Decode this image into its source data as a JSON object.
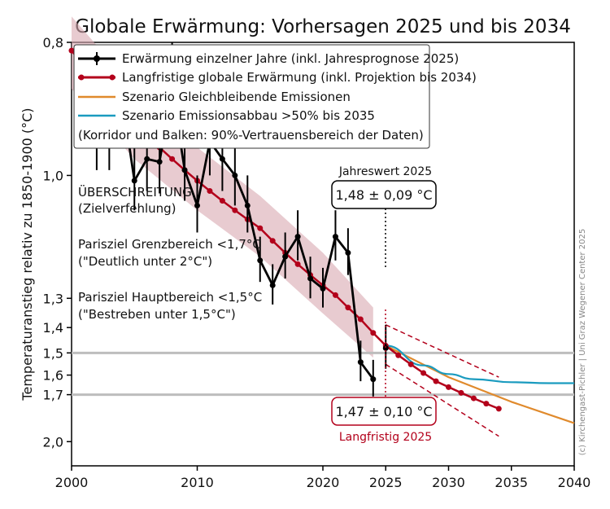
{
  "chart_data": {
    "type": "line",
    "title": "Globale Erwärmung: Vorhersagen 2025 und bis 2034",
    "ylabel": "Temperaturanstieg relativ zu 1850-1900 (°C)",
    "xlabel": "",
    "xlim": [
      2000,
      2040
    ],
    "ylim": [
      0.8,
      2.2
    ],
    "y_scale": "reciprocal",
    "x_ticks": [
      2000,
      2010,
      2020,
      2025,
      2030,
      2035,
      2040
    ],
    "y_ticks": [
      0.8,
      1.0,
      1.3,
      1.4,
      1.5,
      1.6,
      1.7,
      2.0
    ],
    "y_tick_labels": [
      "0,8",
      "1,0",
      "1,3",
      "1,4",
      "1,5",
      "1,6",
      "1,7",
      "2,0"
    ],
    "x_tick_labels": [
      "2000",
      "2010",
      "2020",
      "2025",
      "2030",
      "2035",
      "2040"
    ],
    "reference_lines": [
      1.5,
      1.7
    ],
    "legend": {
      "placement": "top",
      "entries": [
        "Erwärmung einzelner Jahre (inkl. Jahresprognose 2025)",
        "Langfristige globale Erwärmung (inkl. Projektion bis 2034)",
        "Szenario Gleichbleibende Emissionen",
        "Szenario Emissionsabbau >50% bis 2035"
      ],
      "note": "(Korridor und Balken: 90%-Vertrauensbereich der Daten)"
    },
    "annotations": {
      "ueber_title": "ÜBERSCHREITUNG",
      "ueber_sub": "(Zielverfehlung)",
      "grenz_title": "Parisziel Grenzbereich <1,7°C",
      "grenz_sub": "(\"Deutlich unter 2°C\")",
      "haupt_title": "Parisziel Hauptbereich <1,5°C",
      "haupt_sub": "(\"Bestreben unter 1,5°C\")",
      "annual_label": "Jahreswert 2025",
      "annual_value": "1,48 ± 0,09 °C",
      "long_value": "1,47 ± 0,10 °C",
      "long_label": "Langfristig 2025"
    },
    "credit": "(c) Kirchengast-Pichler | Uni Graz Wegener Center 2025",
    "series": [
      {
        "name": "Erwärmung einzelner Jahre (inkl. Jahresprognose 2025)",
        "color": "#000000",
        "x": [
          2001,
          2002,
          2003,
          2004,
          2005,
          2006,
          2007,
          2008,
          2009,
          2010,
          2011,
          2012,
          2013,
          2014,
          2015,
          2016,
          2017,
          2018,
          2019,
          2020,
          2021,
          2022,
          2023,
          2024,
          2025
        ],
        "y": [
          0.87,
          0.93,
          0.93,
          0.87,
          1.01,
          0.97,
          0.975,
          0.86,
          0.99,
          1.06,
          0.94,
          0.97,
          1.0,
          1.06,
          1.19,
          1.26,
          1.18,
          1.13,
          1.24,
          1.27,
          1.13,
          1.17,
          1.54,
          1.62,
          1.48
        ],
        "err": [
          0.06,
          0.06,
          0.06,
          0.06,
          0.06,
          0.06,
          0.06,
          0.06,
          0.06,
          0.06,
          0.06,
          0.06,
          0.06,
          0.06,
          0.06,
          0.06,
          0.06,
          0.06,
          0.06,
          0.06,
          0.06,
          0.06,
          0.09,
          0.09,
          0.09
        ]
      },
      {
        "name": "Langfristige globale Erwärmung (inkl. Projektion bis 2034)",
        "color": "#b3001b",
        "x": [
          2000,
          2001,
          2002,
          2003,
          2004,
          2005,
          2006,
          2007,
          2008,
          2009,
          2010,
          2011,
          2012,
          2013,
          2014,
          2015,
          2016,
          2017,
          2018,
          2019,
          2020,
          2021,
          2022,
          2023,
          2024,
          2025,
          2026,
          2027,
          2028,
          2029,
          2030,
          2031,
          2032,
          2033,
          2034
        ],
        "y": [
          0.81,
          0.83,
          0.85,
          0.87,
          0.89,
          0.91,
          0.93,
          0.95,
          0.97,
          0.99,
          1.01,
          1.03,
          1.05,
          1.07,
          1.09,
          1.11,
          1.14,
          1.17,
          1.2,
          1.23,
          1.26,
          1.29,
          1.33,
          1.37,
          1.42,
          1.47,
          1.51,
          1.55,
          1.59,
          1.63,
          1.66,
          1.69,
          1.72,
          1.75,
          1.78
        ],
        "band": [
          [
            2000,
            0.86,
            0.77
          ],
          [
            2005,
            0.97,
            0.86
          ],
          [
            2010,
            1.07,
            0.95
          ],
          [
            2015,
            1.18,
            1.04
          ],
          [
            2020,
            1.35,
            1.17
          ],
          [
            2024,
            1.52,
            1.33
          ]
        ],
        "trend_upper": [
          [
            2025,
            1.55
          ],
          [
            2034,
            1.96
          ]
        ],
        "trend_lower": [
          [
            2025,
            1.39
          ],
          [
            2034,
            1.61
          ]
        ]
      },
      {
        "name": "Szenario Gleichbleibende Emissionen",
        "color": "#e08a2c",
        "x": [
          2025,
          2030,
          2035,
          2040
        ],
        "y": [
          1.47,
          1.61,
          1.74,
          1.87
        ]
      },
      {
        "name": "Szenario Emissionsabbau >50% bis 2035",
        "color": "#1a9bbf",
        "x": [
          2025,
          2028,
          2030,
          2032,
          2035,
          2038,
          2040
        ],
        "y": [
          1.47,
          1.555,
          1.595,
          1.62,
          1.635,
          1.64,
          1.64
        ]
      }
    ]
  }
}
